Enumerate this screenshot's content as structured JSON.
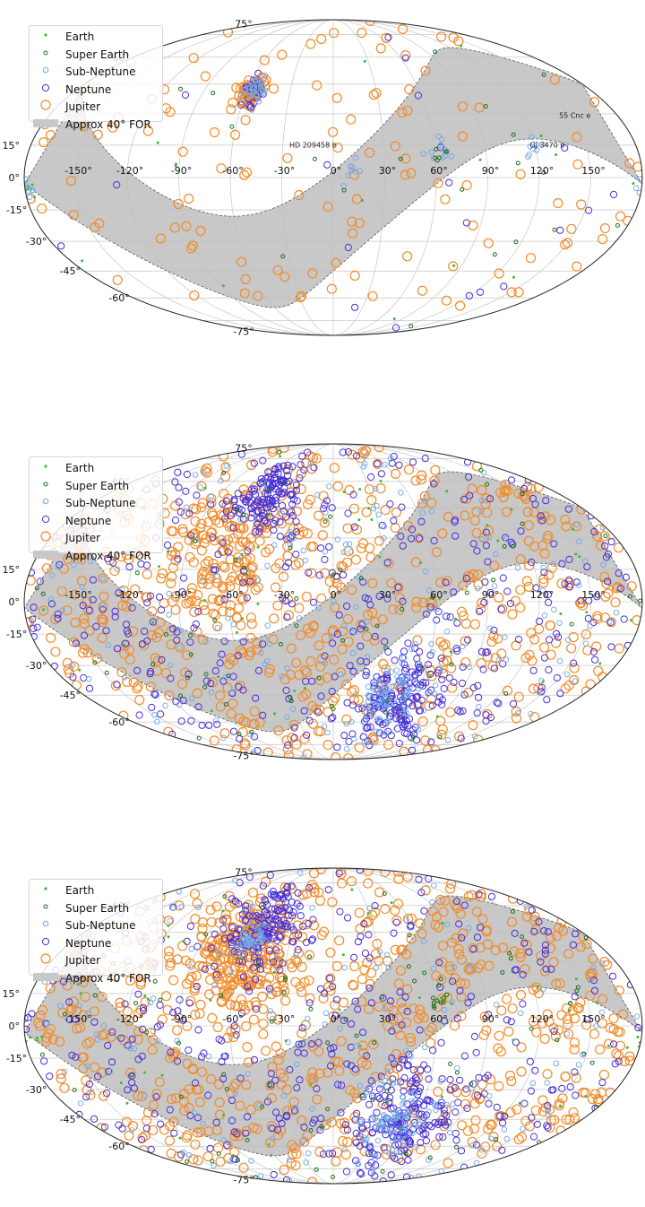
{
  "legend": {
    "earth": "Earth",
    "super_earth": "Super Earth",
    "sub_neptune": "Sub-Neptune",
    "neptune": "Neptune",
    "jupiter": "Jupiter",
    "for": "Approx 40° FOR"
  },
  "colors": {
    "earth": "#3cb83c",
    "super_earth": "#1a6e1a",
    "sub_neptune": "#6fa8ea",
    "neptune": "#4630d8",
    "jupiter": "#f28c28",
    "for_fill": "#c8c8c8"
  },
  "chart_data": [
    {
      "type": "scatter",
      "projection": "mollweide",
      "lon_ticks": [
        "-150°",
        "-120°",
        "-90°",
        "-60°",
        "-30°",
        "0°",
        "30°",
        "60°",
        "90°",
        "120°",
        "150°"
      ],
      "lat_ticks": [
        "75°",
        "60°",
        "15°",
        "0°",
        "-15°",
        "-30°",
        "-45°",
        "-60°",
        "-75°"
      ],
      "annotations": [
        {
          "text": "HD 209458 b",
          "lon": -12,
          "lat": 14
        },
        {
          "text": "55 Cnc e",
          "lon": 152,
          "lat": 28
        },
        {
          "text": "GJ 3470 b",
          "lon": 127,
          "lat": 14
        }
      ],
      "series": [
        {
          "key": "jupiter",
          "name": "Jupiter",
          "count": 190,
          "clusters": [
            {
              "lon": -56,
              "lat": 42,
              "spread": 4,
              "count": 60
            }
          ]
        },
        {
          "key": "neptune",
          "name": "Neptune",
          "count": 40,
          "clusters": [
            {
              "lon": -56,
              "lat": 42,
              "spread": 4,
              "count": 20
            }
          ]
        },
        {
          "key": "sub_neptune",
          "name": "Sub-Neptune",
          "count": 35,
          "clusters": [
            {
              "lon": -56,
              "lat": 42,
              "spread": 4,
              "count": 30
            },
            {
              "lon": 62,
              "lat": 11,
              "spread": 4,
              "count": 10
            },
            {
              "lon": 118,
              "lat": 14,
              "spread": 3,
              "count": 8
            },
            {
              "lon": 12,
              "lat": 3,
              "spread": 3,
              "count": 8
            },
            {
              "lon": -179,
              "lat": -6,
              "spread": 3,
              "count": 10
            }
          ]
        },
        {
          "key": "super_earth",
          "name": "Super Earth",
          "count": 25,
          "clusters": [
            {
              "lon": 62,
              "lat": 11,
              "spread": 4,
              "count": 6
            }
          ]
        },
        {
          "key": "earth",
          "name": "Earth",
          "count": 20,
          "clusters": [
            {
              "lon": -179,
              "lat": -6,
              "spread": 3,
              "count": 6
            }
          ]
        }
      ]
    },
    {
      "type": "scatter",
      "projection": "mollweide",
      "lon_ticks": [
        "-150°",
        "-120°",
        "-90°",
        "-60°",
        "-30°",
        "0°",
        "30°",
        "60°",
        "90°",
        "120°",
        "150°"
      ],
      "lat_ticks": [
        "75°",
        "60°",
        "15°",
        "0°",
        "-15°",
        "-30°",
        "-45°",
        "-60°",
        "-75°"
      ],
      "annotations": [],
      "series": [
        {
          "key": "jupiter",
          "name": "Jupiter",
          "count": 700,
          "clusters": [
            {
              "lon": -70,
              "lat": 20,
              "spread": 22,
              "count": 150
            }
          ]
        },
        {
          "key": "neptune",
          "name": "Neptune",
          "count": 650,
          "clusters": [
            {
              "lon": -52,
              "lat": 50,
              "spread": 12,
              "count": 130
            },
            {
              "lon": 50,
              "lat": -45,
              "spread": 18,
              "count": 150
            }
          ]
        },
        {
          "key": "sub_neptune",
          "name": "Sub-Neptune",
          "count": 250,
          "clusters": [
            {
              "lon": 45,
              "lat": -45,
              "spread": 15,
              "count": 80
            }
          ]
        },
        {
          "key": "super_earth",
          "name": "Super Earth",
          "count": 70,
          "clusters": []
        },
        {
          "key": "earth",
          "name": "Earth",
          "count": 50,
          "clusters": []
        }
      ]
    },
    {
      "type": "scatter",
      "projection": "mollweide",
      "lon_ticks": [
        "-150°",
        "-120°",
        "-90°",
        "-60°",
        "-30°",
        "0°",
        "30°",
        "60°",
        "90°",
        "120°",
        "150°"
      ],
      "lat_ticks": [
        "75°",
        "60°",
        "15°",
        "0°",
        "-15°",
        "-30°",
        "-45°",
        "-60°",
        "-75°"
      ],
      "annotations": [],
      "series": [
        {
          "key": "jupiter",
          "name": "Jupiter",
          "count": 850,
          "clusters": [
            {
              "lon": -60,
              "lat": 30,
              "spread": 18,
              "count": 200
            }
          ]
        },
        {
          "key": "neptune",
          "name": "Neptune",
          "count": 650,
          "clusters": [
            {
              "lon": -52,
              "lat": 50,
              "spread": 12,
              "count": 130
            },
            {
              "lon": 50,
              "lat": -45,
              "spread": 18,
              "count": 150
            }
          ]
        },
        {
          "key": "sub_neptune",
          "name": "Sub-Neptune",
          "count": 280,
          "clusters": [
            {
              "lon": -56,
              "lat": 42,
              "spread": 5,
              "count": 40
            },
            {
              "lon": 45,
              "lat": -45,
              "spread": 15,
              "count": 80
            }
          ]
        },
        {
          "key": "super_earth",
          "name": "Super Earth",
          "count": 90,
          "clusters": [
            {
              "lon": 62,
              "lat": 11,
              "spread": 4,
              "count": 10
            }
          ]
        },
        {
          "key": "earth",
          "name": "Earth",
          "count": 60,
          "clusters": [
            {
              "lon": -179,
              "lat": -6,
              "spread": 3,
              "count": 8
            }
          ]
        }
      ]
    }
  ]
}
